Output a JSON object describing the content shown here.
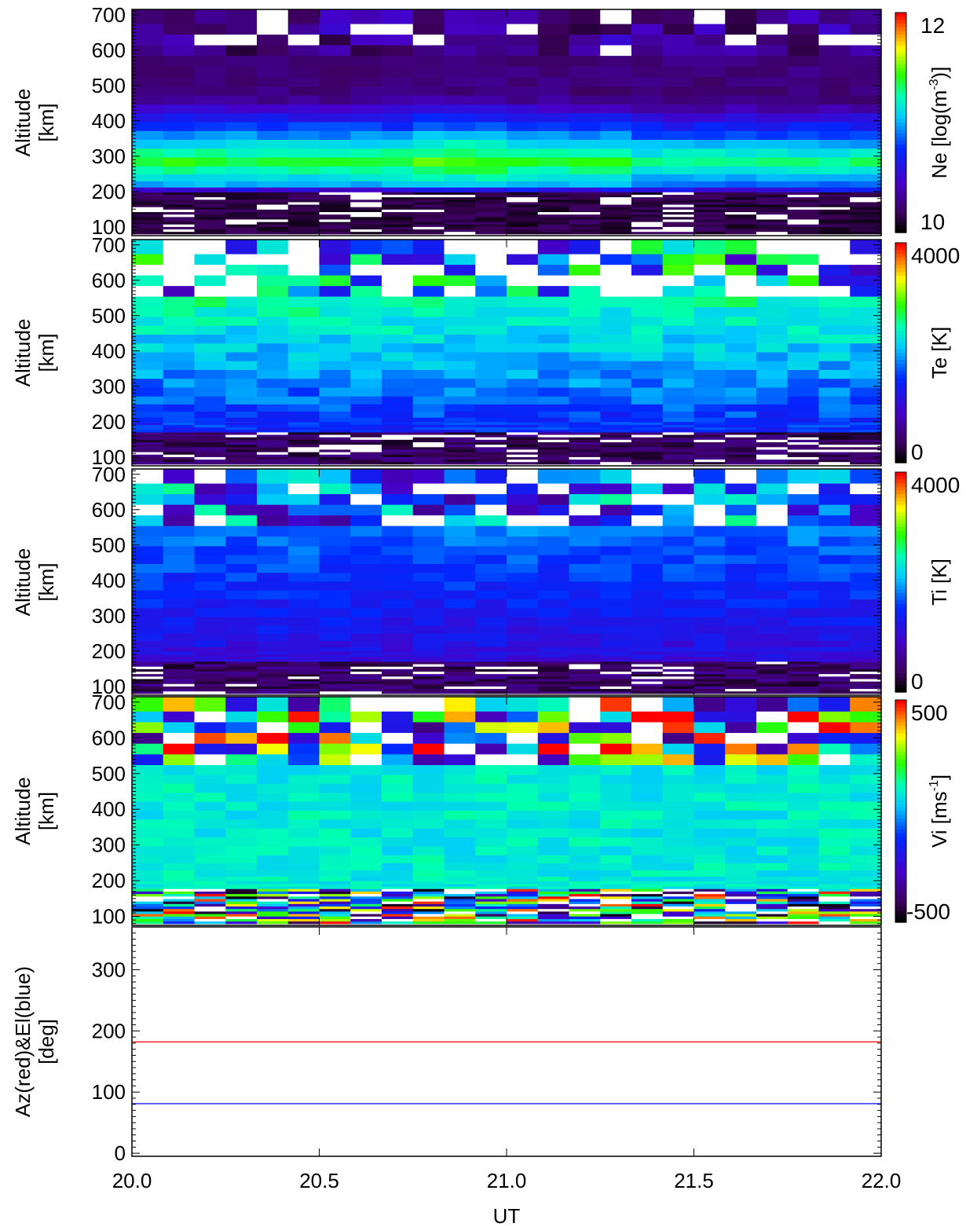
{
  "chart_data": [
    {
      "type": "heatmap",
      "title": "",
      "ylabel_lines": [
        "Altitude",
        "[km]"
      ],
      "colorbar": {
        "label": "Ne [log(m",
        "label_sup": "-3",
        "label_end": ")]",
        "top_label": "12",
        "bottom_label": "10",
        "range": [
          9.5,
          12.2
        ]
      },
      "yticks": [
        "100",
        "200",
        "300",
        "400",
        "500",
        "600",
        "700"
      ],
      "ylim": [
        75,
        715
      ],
      "xlim": [
        20.0,
        22.0
      ],
      "grid": false,
      "layer_altitude_km": [
        95,
        120,
        150,
        180,
        205,
        220,
        240,
        260,
        285,
        310,
        335,
        360,
        385,
        410,
        435,
        460,
        485,
        510,
        540,
        570,
        600,
        630,
        660,
        690
      ],
      "column_start_ut": [
        20.0,
        20.083,
        20.167,
        20.25,
        20.333,
        20.417,
        20.5,
        20.583,
        20.667,
        20.75,
        20.833,
        20.917,
        21.0,
        21.083,
        21.167,
        21.25,
        21.333,
        21.417,
        21.5,
        21.583,
        21.667,
        21.75,
        21.833,
        21.917
      ],
      "note": "Ne electron density profile: peak near 260-300 km"
    },
    {
      "type": "heatmap",
      "title": "",
      "ylabel_lines": [
        "Altitude",
        "[km]"
      ],
      "colorbar": {
        "label": "Te [K]",
        "top_label": "4000",
        "bottom_label": "0",
        "range": [
          0,
          4000
        ]
      },
      "yticks": [
        "100",
        "200",
        "300",
        "400",
        "500",
        "600",
        "700"
      ],
      "ylim": [
        75,
        715
      ],
      "xlim": [
        20.0,
        22.0
      ],
      "grid": false
    },
    {
      "type": "heatmap",
      "title": "",
      "ylabel_lines": [
        "Altitude",
        "[km]"
      ],
      "colorbar": {
        "label": "Ti [K]",
        "top_label": "4000",
        "bottom_label": "0",
        "range": [
          0,
          4000
        ]
      },
      "yticks": [
        "100",
        "200",
        "300",
        "400",
        "500",
        "600",
        "700"
      ],
      "ylim": [
        75,
        715
      ],
      "xlim": [
        20.0,
        22.0
      ],
      "grid": false
    },
    {
      "type": "heatmap",
      "title": "",
      "ylabel_lines": [
        "Altitude",
        "[km]"
      ],
      "colorbar": {
        "label": "Vi [ms",
        "label_sup": "-1",
        "label_end": "]",
        "top_label": "500",
        "bottom_label": "-500",
        "range": [
          -500,
          500
        ]
      },
      "yticks": [
        "100",
        "200",
        "300",
        "400",
        "500",
        "600",
        "700"
      ],
      "ylim": [
        75,
        715
      ],
      "xlim": [
        20.0,
        22.0
      ],
      "grid": false
    },
    {
      "type": "line",
      "title": "",
      "ylabel_lines": [
        "Az(red)&El(blue)",
        "[deg]"
      ],
      "yticks": [
        "0",
        "100",
        "200",
        "300"
      ],
      "ylim": [
        -5,
        370
      ],
      "xlim": [
        20.0,
        22.0
      ],
      "xticks": [
        "20.0",
        "20.5",
        "21.0",
        "21.5",
        "22.0"
      ],
      "xlabel": "UT",
      "grid": false,
      "series": [
        {
          "color": "#ff0000",
          "x": [
            20.0,
            22.0
          ],
          "y": [
            182,
            182
          ]
        },
        {
          "color": "#0000ff",
          "x": [
            20.0,
            22.0
          ],
          "y": [
            81,
            81
          ]
        }
      ]
    }
  ]
}
